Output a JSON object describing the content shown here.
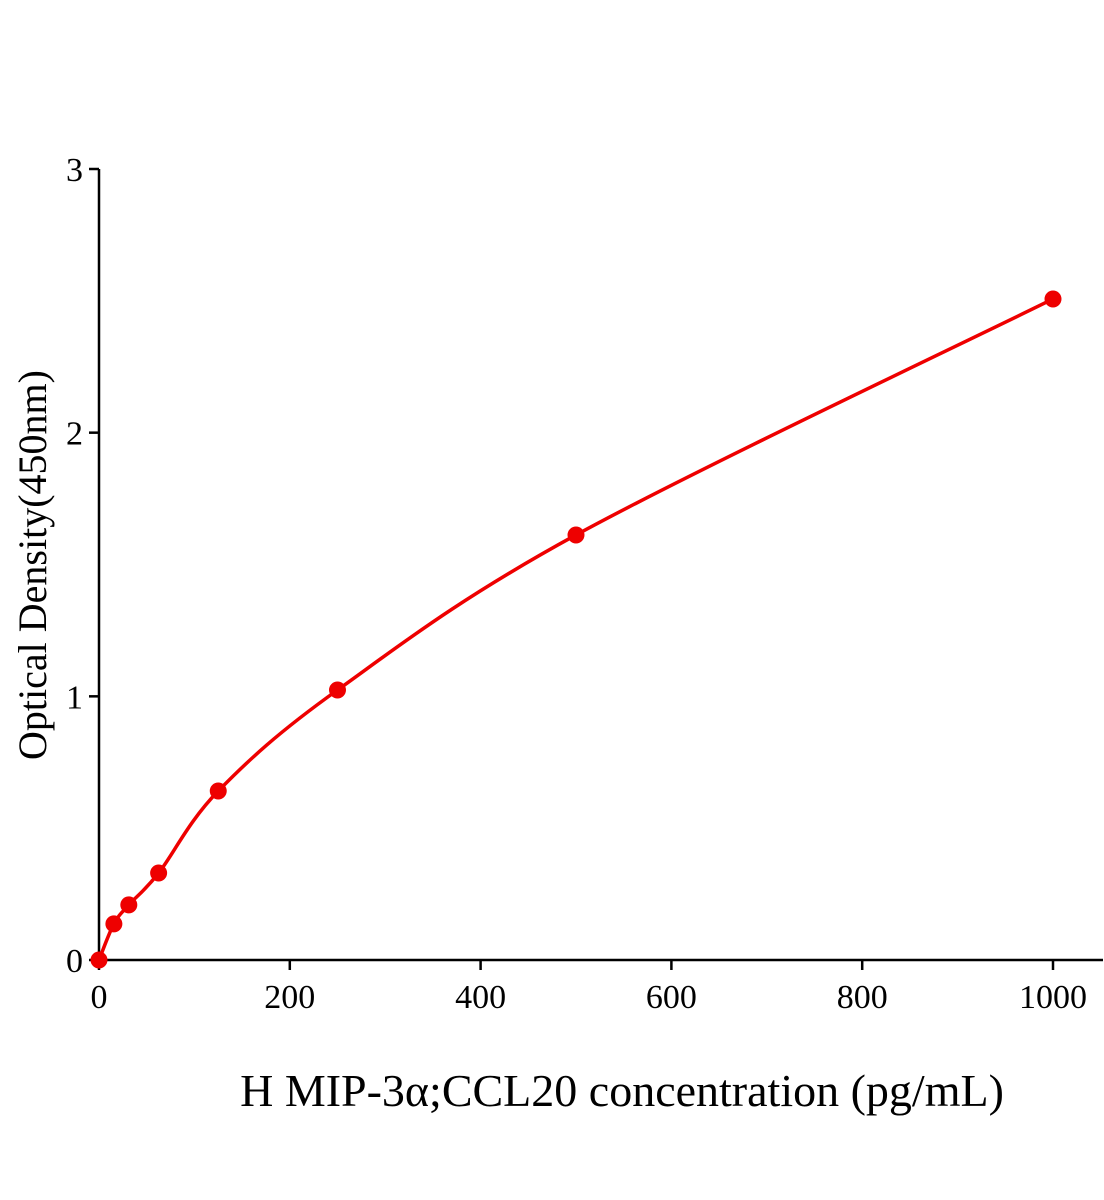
{
  "chart_data": {
    "type": "scatter",
    "title": "",
    "xlabel": "H MIP-3α;CCL20 concentration (pg/mL)",
    "ylabel": "Optical Density(450nm)",
    "xlim": [
      0,
      1000
    ],
    "ylim": [
      0,
      3
    ],
    "xticks": [
      0,
      200,
      400,
      600,
      800,
      1000
    ],
    "yticks": [
      0,
      1,
      2,
      3
    ],
    "grid": false,
    "color": "#ee0000",
    "points": [
      {
        "x": 0,
        "y": 0.0
      },
      {
        "x": 15.6,
        "y": 0.137
      },
      {
        "x": 31.25,
        "y": 0.209
      },
      {
        "x": 62.5,
        "y": 0.33
      },
      {
        "x": 125,
        "y": 0.641
      },
      {
        "x": 250,
        "y": 1.024
      },
      {
        "x": 500,
        "y": 1.612
      },
      {
        "x": 1000,
        "y": 2.507
      }
    ],
    "fit_curve": true
  }
}
